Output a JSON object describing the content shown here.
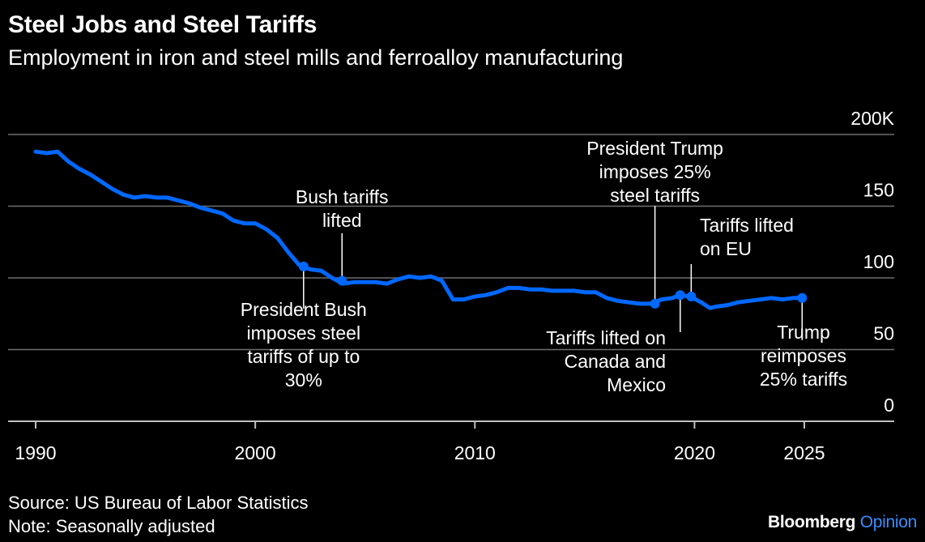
{
  "header": {
    "title": "Steel Jobs and Steel Tariffs",
    "subtitle": "Employment in iron and steel mills and ferroalloy manufacturing"
  },
  "footer": {
    "source": "Source: US Bureau of Labor Statistics",
    "note": "Note: Seasonally adjusted",
    "brand": "Bloomberg",
    "brand_accent": "Opinion"
  },
  "colors": {
    "line": "#0068ff",
    "background": "#000000",
    "grid": "#6e6e6e",
    "text": "#ffffff",
    "brand_accent": "#3a8dff"
  },
  "chart_data": {
    "type": "line",
    "title": "Steel Jobs and Steel Tariffs",
    "subtitle": "Employment in iron and steel mills and ferroalloy manufacturing",
    "xlabel": "",
    "ylabel": "",
    "xlim": [
      1990,
      2028
    ],
    "ylim": [
      0,
      200
    ],
    "xticks": [
      1990,
      2000,
      2010,
      2020,
      2025
    ],
    "yticks": [
      {
        "value": 0,
        "label": "0"
      },
      {
        "value": 50,
        "label": "50"
      },
      {
        "value": 100,
        "label": "100"
      },
      {
        "value": 150,
        "label": "150"
      },
      {
        "value": 200,
        "label": "200K"
      }
    ],
    "grid": "horizontal",
    "y_axis_side": "right",
    "series": [
      {
        "color": "#0068ff",
        "points": [
          [
            1990.0,
            188
          ],
          [
            1990.5,
            187
          ],
          [
            1991.0,
            188
          ],
          [
            1991.5,
            181
          ],
          [
            1992.0,
            176
          ],
          [
            1992.5,
            172
          ],
          [
            1993.0,
            167
          ],
          [
            1993.5,
            162
          ],
          [
            1994.0,
            158
          ],
          [
            1994.5,
            156
          ],
          [
            1995.0,
            157
          ],
          [
            1995.5,
            156
          ],
          [
            1996.0,
            156
          ],
          [
            1996.5,
            154
          ],
          [
            1997.0,
            152
          ],
          [
            1997.5,
            149
          ],
          [
            1998.0,
            147
          ],
          [
            1998.5,
            145
          ],
          [
            1999.0,
            140
          ],
          [
            1999.5,
            138
          ],
          [
            2000.0,
            138
          ],
          [
            2000.5,
            134
          ],
          [
            2001.0,
            128
          ],
          [
            2001.5,
            118
          ],
          [
            2002.0,
            109
          ],
          [
            2002.5,
            106
          ],
          [
            2003.0,
            105
          ],
          [
            2003.5,
            100
          ],
          [
            2004.0,
            96
          ],
          [
            2004.5,
            97
          ],
          [
            2005.0,
            97
          ],
          [
            2005.5,
            97
          ],
          [
            2006.0,
            96
          ],
          [
            2006.5,
            99
          ],
          [
            2007.0,
            101
          ],
          [
            2007.5,
            100
          ],
          [
            2008.0,
            101
          ],
          [
            2008.5,
            98
          ],
          [
            2009.0,
            85
          ],
          [
            2009.5,
            85
          ],
          [
            2010.0,
            87
          ],
          [
            2010.5,
            88
          ],
          [
            2011.0,
            90
          ],
          [
            2011.5,
            93
          ],
          [
            2012.0,
            93
          ],
          [
            2012.5,
            92
          ],
          [
            2013.0,
            92
          ],
          [
            2013.5,
            91
          ],
          [
            2014.0,
            91
          ],
          [
            2014.5,
            91
          ],
          [
            2015.0,
            90
          ],
          [
            2015.5,
            90
          ],
          [
            2016.0,
            86
          ],
          [
            2016.5,
            84
          ],
          [
            2017.0,
            83
          ],
          [
            2017.5,
            82
          ],
          [
            2018.0,
            82
          ],
          [
            2018.5,
            85
          ],
          [
            2019.0,
            86
          ],
          [
            2019.3,
            88
          ],
          [
            2019.8,
            87
          ],
          [
            2020.3,
            83
          ],
          [
            2020.7,
            79
          ],
          [
            2021.0,
            80
          ],
          [
            2021.5,
            81
          ],
          [
            2022.0,
            83
          ],
          [
            2022.5,
            84
          ],
          [
            2023.0,
            85
          ],
          [
            2023.5,
            86
          ],
          [
            2024.0,
            85
          ],
          [
            2024.5,
            86
          ],
          [
            2024.9,
            86
          ]
        ]
      }
    ],
    "events": [
      {
        "x": 2002.2,
        "y": 108,
        "label": [
          "President Bush",
          "imposes steel",
          "tariffs of up to",
          "30%"
        ],
        "label_position": "below"
      },
      {
        "x": 2003.95,
        "y": 98,
        "label": [
          "Bush tariffs",
          "lifted"
        ],
        "label_position": "above"
      },
      {
        "x": 2018.2,
        "y": 82,
        "label": [
          "President Trump",
          "imposes 25%",
          "steel tariffs"
        ],
        "label_position": "above"
      },
      {
        "x": 2019.35,
        "y": 88,
        "label": [
          "Tariffs lifted on",
          "Canada and",
          "Mexico"
        ],
        "label_position": "below-left"
      },
      {
        "x": 2019.85,
        "y": 87,
        "label": [
          "Tariffs lifted",
          "on EU"
        ],
        "label_position": "above-right"
      },
      {
        "x": 2024.9,
        "y": 86,
        "label": [
          "Trump",
          "reimposes",
          "25% tariffs"
        ],
        "label_position": "below"
      }
    ]
  }
}
